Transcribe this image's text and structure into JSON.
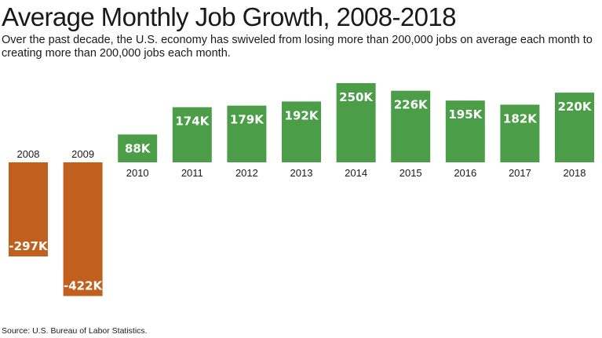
{
  "chart_data": {
    "type": "bar",
    "title": "Average Monthly Job Growth, 2008-2018",
    "subtitle": "Over the past decade, the U.S. economy has swiveled from losing more than 200,000 jobs on average each month to creating more than 200,000 jobs each month.",
    "source": "Source: U.S. Bureau of Labor Statistics.",
    "categories": [
      "2008",
      "2009",
      "2010",
      "2011",
      "2012",
      "2013",
      "2014",
      "2015",
      "2016",
      "2017",
      "2018"
    ],
    "values": [
      -297,
      -422,
      88,
      174,
      179,
      192,
      250,
      226,
      195,
      182,
      220
    ],
    "data_labels": [
      "-297K",
      "-422K",
      "88K",
      "174K",
      "179K",
      "192K",
      "250K",
      "226K",
      "195K",
      "182K",
      "220K"
    ],
    "units": "thousands of jobs",
    "colors": {
      "positive": "#4b9e47",
      "negative": "#c1601e"
    },
    "grid": false,
    "legend": false
  }
}
